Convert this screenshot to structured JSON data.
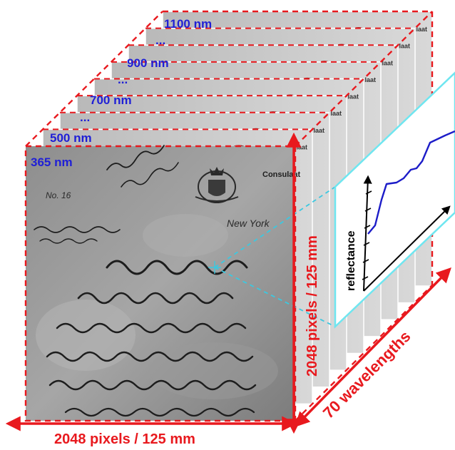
{
  "wavelength_labels": {
    "w365": "365 nm",
    "w500": "500 nm",
    "w700": "700 nm",
    "w900": "900 nm",
    "w1100": "1100 nm",
    "ellipsis": "..."
  },
  "dimension_labels": {
    "width": "2048 pixels / 125 mm",
    "height": "2048 pixels / 125 mm",
    "depth": "70 wavelengths"
  },
  "spectrum_panel": {
    "ylabel": "reflectance"
  },
  "document": {
    "consulate_header": "Consulaat",
    "city": "New York",
    "number": "No. 16"
  },
  "colors": {
    "dashed_frame": "#e8191e",
    "wavelength_text": "#1f1fd6",
    "dimension_text": "#e8191e",
    "spectrum_line": "#1c1cc8",
    "spectrum_border": "#6fe6f0",
    "pointer_line": "#3cc8e0"
  }
}
